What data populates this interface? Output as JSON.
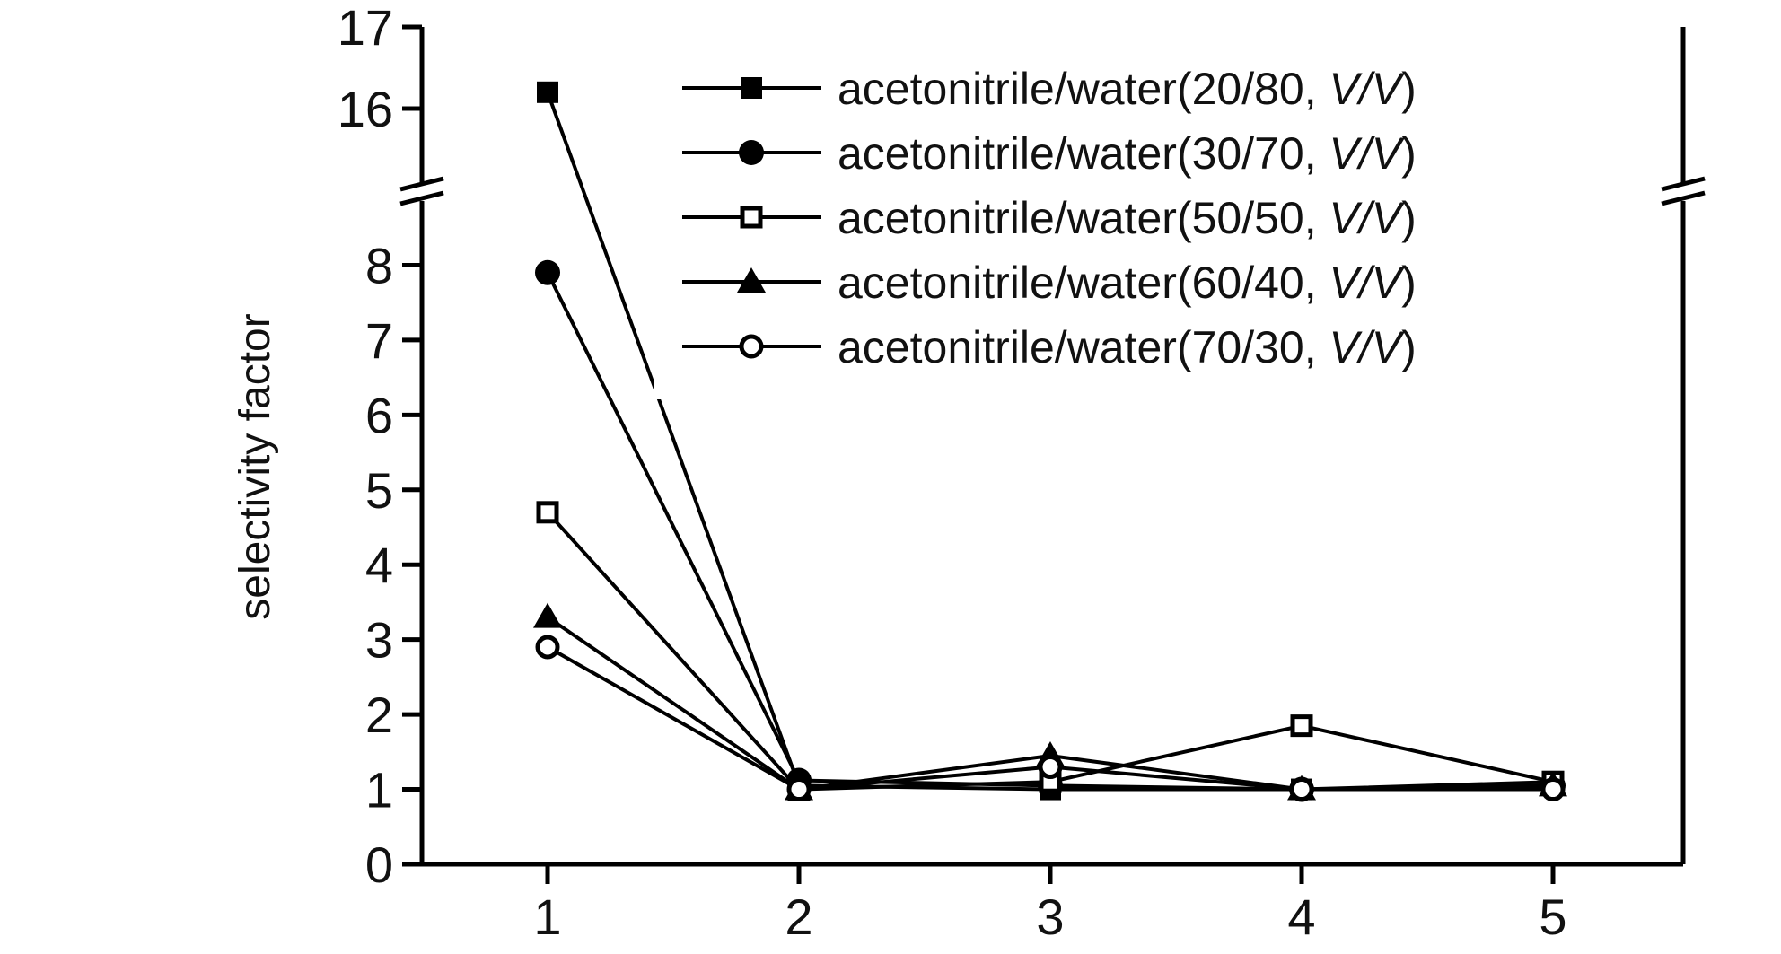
{
  "chart_data": {
    "type": "line",
    "title": "",
    "xlabel": "",
    "ylabel": "selectivity factor",
    "categories": [
      "1",
      "2",
      "3",
      "4",
      "5"
    ],
    "y_axis": {
      "lower_segment": {
        "range": [
          0,
          9
        ],
        "ticks": [
          0,
          1,
          2,
          3,
          4,
          5,
          6,
          7,
          8
        ]
      },
      "upper_segment": {
        "range": [
          15,
          17
        ],
        "ticks": [
          16,
          17
        ]
      },
      "axis_break": true
    },
    "grid": false,
    "legend_position": "top-right",
    "series": [
      {
        "name": "acetonitrile/water(20/80, ",
        "name_italic": "V/V",
        "name_suffix": ")",
        "marker": "filled-square",
        "values": [
          16.2,
          1.05,
          1.0,
          1.0,
          1.1
        ]
      },
      {
        "name": "acetonitrile/water(30/70, ",
        "name_italic": "V/V",
        "name_suffix": ")",
        "marker": "filled-circle",
        "values": [
          7.9,
          1.12,
          1.05,
          1.0,
          1.05
        ]
      },
      {
        "name": "acetonitrile/water(50/50, ",
        "name_italic": "V/V",
        "name_suffix": ")",
        "marker": "open-square",
        "values": [
          4.7,
          1.0,
          1.1,
          1.85,
          1.1
        ]
      },
      {
        "name": "acetonitrile/water(60/40, ",
        "name_italic": "V/V",
        "name_suffix": ")",
        "marker": "filled-triangle",
        "values": [
          3.3,
          1.0,
          1.45,
          1.0,
          1.05
        ]
      },
      {
        "name": "acetonitrile/water(70/30, ",
        "name_italic": "V/V",
        "name_suffix": ")",
        "marker": "open-circle",
        "values": [
          2.9,
          1.0,
          1.3,
          1.0,
          1.0
        ]
      }
    ]
  }
}
